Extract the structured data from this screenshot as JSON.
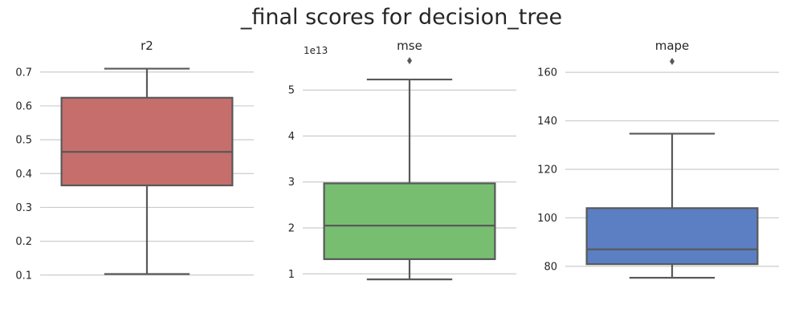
{
  "figure": {
    "title": "_final scores for decision_tree"
  },
  "chart_data": [
    {
      "type": "box",
      "title": "r2",
      "xlabel": "",
      "ylabel": "",
      "offset_label": "",
      "color": "#c66e6c",
      "ylim": [
        0.09,
        0.735
      ],
      "yticks": [
        0.1,
        0.2,
        0.3,
        0.4,
        0.5,
        0.6,
        0.7
      ],
      "ytick_labels": [
        "0.1",
        "0.2",
        "0.3",
        "0.4",
        "0.5",
        "0.6",
        "0.7"
      ],
      "grid": true,
      "stats": {
        "whislo": 0.103,
        "q1": 0.365,
        "median": 0.464,
        "q3": 0.624,
        "whishi": 0.71,
        "fliers": []
      }
    },
    {
      "type": "box",
      "title": "mse",
      "xlabel": "",
      "ylabel": "",
      "offset_label": "1e13",
      "color": "#77be71",
      "ylim": [
        0.9,
        5.65
      ],
      "yticks": [
        1,
        2,
        3,
        4,
        5
      ],
      "ytick_labels": [
        "1",
        "2",
        "3",
        "4",
        "5"
      ],
      "grid": true,
      "stats": {
        "whislo": 0.88,
        "q1": 1.32,
        "median": 2.05,
        "q3": 2.97,
        "whishi": 5.23,
        "fliers": [
          5.64
        ]
      }
    },
    {
      "type": "box",
      "title": "mape",
      "xlabel": "",
      "ylabel": "",
      "offset_label": "",
      "color": "#5b7fc2",
      "ylim": [
        75,
        165
      ],
      "yticks": [
        80,
        100,
        120,
        140,
        160
      ],
      "ytick_labels": [
        "80",
        "100",
        "120",
        "140",
        "160"
      ],
      "grid": true,
      "stats": {
        "whislo": 75.3,
        "q1": 80.9,
        "median": 87.0,
        "q3": 104.0,
        "whishi": 134.7,
        "fliers": [
          164.5
        ]
      }
    }
  ]
}
